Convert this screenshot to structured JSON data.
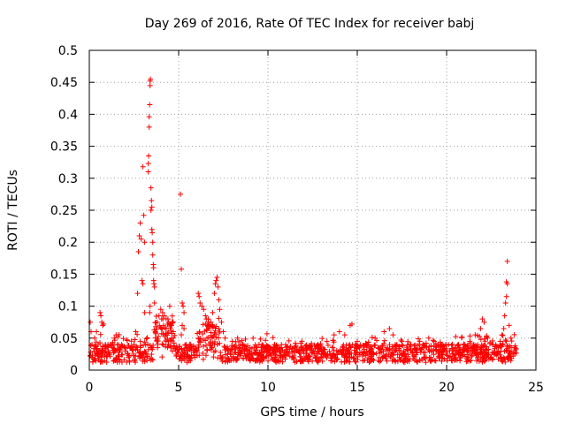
{
  "chart_data": {
    "type": "scatter",
    "title": "Day 269 of 2016, Rate Of TEC Index for receiver babj",
    "xlabel": "GPS time / hours",
    "ylabel": "ROTI / TECUs",
    "xlim": [
      0,
      25
    ],
    "ylim": [
      0,
      0.5
    ],
    "xticks": [
      0,
      5,
      10,
      15,
      20,
      25
    ],
    "yticks": [
      0,
      0.05,
      0.1,
      0.15,
      0.2,
      0.25,
      0.3,
      0.35,
      0.4,
      0.45,
      0.5
    ],
    "xtick_labels": [
      "0",
      "5",
      "10",
      "15",
      "20",
      "25"
    ],
    "ytick_labels": [
      "0",
      "0.05",
      "0.1",
      "0.15",
      "0.2",
      "0.25",
      "0.3",
      "0.35",
      "0.4",
      "0.45",
      "0.5"
    ],
    "grid": true,
    "marker": "+",
    "marker_color": "#ff0000",
    "series": [
      {
        "name": "ROTI",
        "points": [
          [
            0.05,
            0.075
          ],
          [
            0.1,
            0.06
          ],
          [
            0.15,
            0.04
          ],
          [
            0.3,
            0.05
          ],
          [
            0.4,
            0.06
          ],
          [
            0.6,
            0.09
          ],
          [
            0.65,
            0.085
          ],
          [
            0.7,
            0.075
          ],
          [
            0.75,
            0.07
          ],
          [
            0.8,
            0.072
          ],
          [
            0.9,
            0.04
          ],
          [
            1.0,
            0.035
          ],
          [
            1.4,
            0.05
          ],
          [
            1.5,
            0.055
          ],
          [
            1.6,
            0.052
          ],
          [
            1.8,
            0.04
          ],
          [
            2.0,
            0.03
          ],
          [
            2.3,
            0.035
          ],
          [
            2.5,
            0.04
          ],
          [
            2.6,
            0.06
          ],
          [
            2.7,
            0.12
          ],
          [
            2.75,
            0.185
          ],
          [
            2.8,
            0.21
          ],
          [
            2.85,
            0.23
          ],
          [
            2.9,
            0.205
          ],
          [
            2.95,
            0.14
          ],
          [
            3.0,
            0.135
          ],
          [
            3.0,
            0.318
          ],
          [
            3.05,
            0.242
          ],
          [
            3.1,
            0.2
          ],
          [
            3.1,
            0.09
          ],
          [
            3.3,
            0.31
          ],
          [
            3.3,
            0.323
          ],
          [
            3.32,
            0.335
          ],
          [
            3.35,
            0.38
          ],
          [
            3.35,
            0.396
          ],
          [
            3.38,
            0.415
          ],
          [
            3.4,
            0.445
          ],
          [
            3.4,
            0.452
          ],
          [
            3.42,
            0.455
          ],
          [
            3.45,
            0.285
          ],
          [
            3.45,
            0.25
          ],
          [
            3.48,
            0.265
          ],
          [
            3.5,
            0.255
          ],
          [
            3.5,
            0.22
          ],
          [
            3.52,
            0.215
          ],
          [
            3.55,
            0.2
          ],
          [
            3.55,
            0.18
          ],
          [
            3.58,
            0.165
          ],
          [
            3.6,
            0.16
          ],
          [
            3.6,
            0.14
          ],
          [
            3.62,
            0.135
          ],
          [
            3.65,
            0.13
          ],
          [
            3.65,
            0.105
          ],
          [
            3.4,
            0.1
          ],
          [
            3.38,
            0.09
          ],
          [
            3.7,
            0.06
          ],
          [
            3.8,
            0.075
          ],
          [
            3.9,
            0.085
          ],
          [
            4.0,
            0.095
          ],
          [
            4.05,
            0.08
          ],
          [
            4.1,
            0.09
          ],
          [
            4.15,
            0.07
          ],
          [
            4.2,
            0.085
          ],
          [
            4.3,
            0.065
          ],
          [
            4.4,
            0.08
          ],
          [
            4.5,
            0.1
          ],
          [
            4.6,
            0.07
          ],
          [
            4.7,
            0.06
          ],
          [
            5.1,
            0.275
          ],
          [
            5.15,
            0.158
          ],
          [
            5.2,
            0.105
          ],
          [
            5.25,
            0.1
          ],
          [
            5.3,
            0.09
          ],
          [
            5.2,
            0.07
          ],
          [
            5.3,
            0.065
          ],
          [
            6.1,
            0.12
          ],
          [
            6.15,
            0.115
          ],
          [
            6.2,
            0.105
          ],
          [
            6.3,
            0.1
          ],
          [
            6.4,
            0.095
          ],
          [
            6.5,
            0.085
          ],
          [
            6.55,
            0.08
          ],
          [
            6.6,
            0.07
          ],
          [
            6.7,
            0.065
          ],
          [
            6.8,
            0.075
          ],
          [
            6.9,
            0.09
          ],
          [
            7.0,
            0.12
          ],
          [
            7.05,
            0.135
          ],
          [
            7.1,
            0.14
          ],
          [
            7.15,
            0.145
          ],
          [
            7.2,
            0.13
          ],
          [
            7.25,
            0.11
          ],
          [
            7.3,
            0.095
          ],
          [
            7.4,
            0.075
          ],
          [
            7.5,
            0.06
          ],
          [
            7.6,
            0.05
          ],
          [
            8.0,
            0.045
          ],
          [
            8.3,
            0.05
          ],
          [
            8.6,
            0.04
          ],
          [
            9.0,
            0.035
          ],
          [
            9.5,
            0.04
          ],
          [
            10.0,
            0.03
          ],
          [
            10.5,
            0.035
          ],
          [
            11.0,
            0.03
          ],
          [
            11.5,
            0.035
          ],
          [
            11.9,
            0.045
          ],
          [
            12.2,
            0.035
          ],
          [
            12.8,
            0.04
          ],
          [
            13.3,
            0.045
          ],
          [
            13.7,
            0.055
          ],
          [
            14.0,
            0.06
          ],
          [
            14.3,
            0.055
          ],
          [
            14.6,
            0.07
          ],
          [
            14.7,
            0.072
          ],
          [
            15.0,
            0.045
          ],
          [
            15.5,
            0.04
          ],
          [
            16.0,
            0.05
          ],
          [
            16.5,
            0.06
          ],
          [
            16.8,
            0.065
          ],
          [
            17.0,
            0.055
          ],
          [
            17.5,
            0.045
          ],
          [
            18.0,
            0.04
          ],
          [
            18.5,
            0.045
          ],
          [
            19.0,
            0.05
          ],
          [
            19.3,
            0.045
          ],
          [
            19.6,
            0.03
          ],
          [
            20.0,
            0.03
          ],
          [
            20.5,
            0.035
          ],
          [
            21.0,
            0.04
          ],
          [
            21.3,
            0.045
          ],
          [
            21.6,
            0.055
          ],
          [
            21.9,
            0.065
          ],
          [
            22.0,
            0.08
          ],
          [
            22.1,
            0.075
          ],
          [
            22.3,
            0.05
          ],
          [
            22.6,
            0.04
          ],
          [
            23.0,
            0.045
          ],
          [
            23.1,
            0.055
          ],
          [
            23.2,
            0.065
          ],
          [
            23.25,
            0.085
          ],
          [
            23.3,
            0.105
          ],
          [
            23.35,
            0.115
          ],
          [
            23.35,
            0.138
          ],
          [
            23.4,
            0.135
          ],
          [
            23.4,
            0.17
          ],
          [
            23.5,
            0.07
          ],
          [
            23.6,
            0.05
          ],
          [
            23.8,
            0.035
          ]
        ]
      }
    ]
  }
}
